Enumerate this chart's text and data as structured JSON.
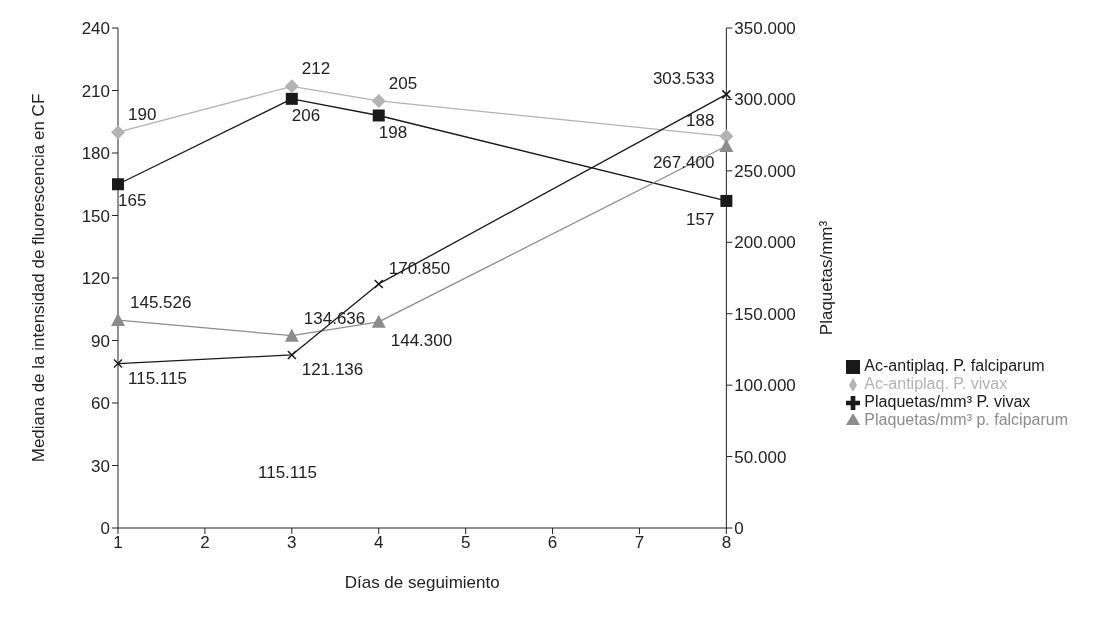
{
  "chart_data": {
    "type": "line",
    "xlabel": "Días de seguimiento",
    "ylabel": "Mediana de la intensidad de fluorescencia en CF",
    "y2label": "Plaquetas/mm³",
    "categories": [
      "1",
      "2",
      "3",
      "4",
      "5",
      "6",
      "7",
      "8"
    ],
    "ylim": [
      0,
      240
    ],
    "yticks": [
      0,
      30,
      60,
      90,
      120,
      150,
      180,
      210,
      240
    ],
    "y2lim": [
      0,
      350000
    ],
    "y2ticks": [
      0,
      {
        "value": 50000,
        "label": "50.000"
      },
      {
        "value": 100000,
        "label": "100.000"
      },
      {
        "value": 150000,
        "label": "150.000"
      },
      {
        "value": 200000,
        "label": "200.000"
      },
      {
        "value": 250000,
        "label": "250.000"
      },
      {
        "value": 300000,
        "label": "300.000"
      },
      {
        "value": 350000,
        "label": "350.000"
      }
    ],
    "legend": "right",
    "series": [
      {
        "name": "Ac-antiplaq. P. falciparum",
        "color": "#1a1a1a",
        "marker": "square",
        "values": [
          165,
          null,
          206,
          198,
          null,
          null,
          null,
          157
        ],
        "value_labels": [
          "165",
          null,
          "206",
          "198",
          null,
          null,
          null,
          "157"
        ]
      },
      {
        "name": "Ac-antiplaq. P. vivax",
        "color": "#b3b3b3",
        "marker": "diamond",
        "values": [
          190,
          null,
          212,
          205,
          null,
          null,
          null,
          188
        ],
        "value_labels": [
          "190",
          null,
          "212",
          "205",
          null,
          null,
          null,
          "188"
        ]
      },
      {
        "name": "Plaquetas/mm³ p. falciparum",
        "color": "#8c8c8c",
        "marker": "triangle",
        "axis": "y2",
        "values": [
          145526,
          null,
          134636,
          144300,
          null,
          null,
          null,
          267400
        ],
        "value_labels": [
          "145.526",
          null,
          "134.636",
          "144.300",
          null,
          null,
          null,
          "267.400"
        ]
      },
      {
        "name": "Plaquetas/mm³ P. vivax",
        "color": "#1a1a1a",
        "marker": "cross",
        "axis": "y2",
        "values": [
          115115,
          null,
          121136,
          170850,
          null,
          null,
          null,
          303533
        ],
        "value_labels": [
          "115.115",
          null,
          "121.136",
          "170.850",
          null,
          null,
          null,
          "303.533"
        ]
      }
    ],
    "annotations": [
      "115.115"
    ]
  }
}
